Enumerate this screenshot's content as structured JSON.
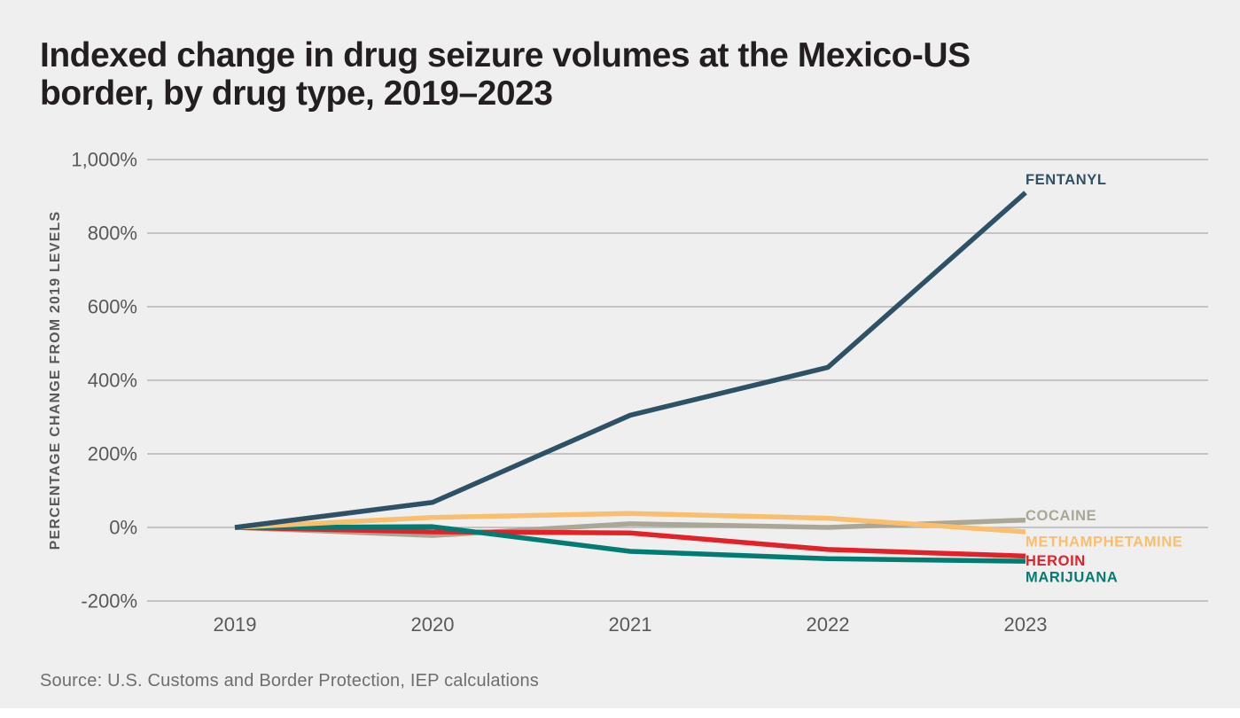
{
  "page": {
    "title": "Indexed change in drug seizure volumes at the Mexico-US\nborder, by drug type, 2019–2023",
    "source": "Source: U.S. Customs and Border Protection, IEP calculations",
    "background_color": "#efefef",
    "title_color": "#231f20",
    "axis_text_color": "#58595b",
    "source_text_color": "#6d6e71",
    "gridline_color": "#b5b5b5"
  },
  "chart_data": {
    "type": "line",
    "title": "Indexed change in drug seizure volumes at the Mexico-US border, by drug type, 2019–2023",
    "xlabel": "",
    "ylabel": "PERCENTAGE CHANGE FROM 2019 LEVELS",
    "categories": [
      "2019",
      "2020",
      "2021",
      "2022",
      "2023"
    ],
    "y_ticks": [
      {
        "label": "1,000%",
        "value": 1000
      },
      {
        "label": "800%",
        "value": 800
      },
      {
        "label": "600%",
        "value": 600
      },
      {
        "label": "400%",
        "value": 400
      },
      {
        "label": "200%",
        "value": 200
      },
      {
        "label": "0%",
        "value": 0
      },
      {
        "label": "-200%",
        "value": -200
      }
    ],
    "ylim": [
      -200,
      1000
    ],
    "grid": true,
    "legend_position": "end-of-line-labels-right",
    "series": [
      {
        "name": "FENTANYL",
        "color": "#2e5166",
        "values": [
          0,
          68,
          305,
          435,
          910
        ],
        "z": 5,
        "label_dy": -15
      },
      {
        "name": "COCAINE",
        "color": "#a9a795",
        "values": [
          0,
          -22,
          10,
          0,
          20
        ],
        "z": 1,
        "label_dy": -5
      },
      {
        "name": "METHAMPHETAMINE",
        "color": "#f9be6e",
        "values": [
          0,
          27,
          38,
          25,
          -12
        ],
        "z": 4,
        "label_dy": 11
      },
      {
        "name": "HEROIN",
        "color": "#e32128",
        "values": [
          0,
          -12,
          -15,
          -60,
          -78
        ],
        "z": 2,
        "label_dy": 5
      },
      {
        "name": "MARIJUANA",
        "color": "#007c72",
        "values": [
          0,
          2,
          -65,
          -85,
          -92
        ],
        "z": 3,
        "label_dy": 18
      }
    ],
    "source": "Source: U.S. Customs and Border Protection, IEP calculations"
  }
}
